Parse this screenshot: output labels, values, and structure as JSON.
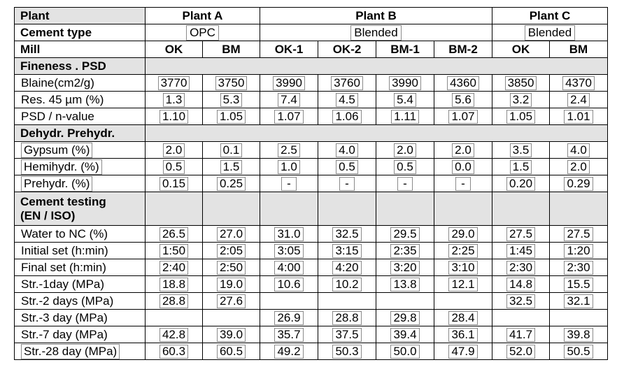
{
  "header": {
    "plant_label": "Plant",
    "plants": [
      "Plant A",
      "Plant B",
      "Plant C"
    ],
    "cement_type_label": "Cement type",
    "cement_types": [
      "OPC",
      "Blended",
      "Blended"
    ],
    "mill_label": "Mill",
    "mills": [
      "OK",
      "BM",
      "OK-1",
      "OK-2",
      "BM-1",
      "BM-2",
      "OK",
      "BM"
    ]
  },
  "sections": [
    {
      "title": "Fineness .  PSD",
      "rows": [
        {
          "label": "Blaine(cm2/g)",
          "values": [
            "3770",
            "3750",
            "3990",
            "3760",
            "3990",
            "4360",
            "3850",
            "4370"
          ]
        },
        {
          "label": "Res. 45 µm (%)",
          "values": [
            "1.3",
            "5.3",
            "7.4",
            "4.5",
            "5.4",
            "5.6",
            "3.2",
            "2.4"
          ]
        },
        {
          "label": "PSD / n-value",
          "values": [
            "1.10",
            "1.05",
            "1.07",
            "1.06",
            "1.11",
            "1.07",
            "1.05",
            "1.01"
          ]
        }
      ]
    },
    {
      "title": "Dehydr.  Prehydr.",
      "rows": [
        {
          "label": "Gypsum     (%)",
          "values": [
            "2.0",
            "0.1",
            "2.5",
            "4.0",
            "2.0",
            "2.0",
            "3.5",
            "4.0"
          ]
        },
        {
          "label": "Hemihydr.  (%)",
          "values": [
            "0.5",
            "1.5",
            "1.0",
            "0.5",
            "0.5",
            "0.0",
            "1.5",
            "2.0"
          ]
        },
        {
          "label": "Prehydr.    (%)",
          "values": [
            "0.15",
            "0.25",
            "-",
            "-",
            "-",
            "-",
            "0.20",
            "0.29"
          ]
        }
      ]
    },
    {
      "title_line1": "Cement  testing",
      "title_line2": "(EN / ISO)",
      "rows": [
        {
          "label": "Water to NC (%)",
          "values": [
            "26.5",
            "27.0",
            "31.0",
            "32.5",
            "29.5",
            "29.0",
            "27.5",
            "27.5"
          ]
        },
        {
          "label": "Initial set (h:min)",
          "values": [
            "1:50",
            "2:05",
            "3:05",
            "3:15",
            "2:35",
            "2:25",
            "1:45",
            "1:20"
          ]
        },
        {
          "label": "Final set  (h:min)",
          "values": [
            "2:40",
            "2:50",
            "4:00",
            "4:20",
            "3:20",
            "3:10",
            "2:30",
            "2:30"
          ]
        },
        {
          "label": "Str.-1day   (MPa)",
          "values": [
            "18.8",
            "19.0",
            "10.6",
            "10.2",
            "13.8",
            "12.1",
            "14.8",
            "15.5"
          ]
        },
        {
          "label": "Str.-2 days (MPa)",
          "values": [
            "28.8",
            "27.6",
            "",
            "",
            "",
            "",
            "32.5",
            "32.1"
          ]
        },
        {
          "label": "Str.-3 day  (MPa)",
          "values": [
            "",
            "",
            "26.9",
            "28.8",
            "29.8",
            "28.4",
            "",
            ""
          ]
        },
        {
          "label": "Str.-7 day  (MPa)",
          "values": [
            "42.8",
            "39.0",
            "35.7",
            "37.5",
            "39.4",
            "36.1",
            "41.7",
            "39.8"
          ]
        },
        {
          "label": "Str.-28 day (MPa)",
          "values": [
            "60.3",
            "60.5",
            "49.2",
            "50.3",
            "50.0",
            "47.9",
            "52.0",
            "50.5"
          ]
        }
      ]
    }
  ]
}
